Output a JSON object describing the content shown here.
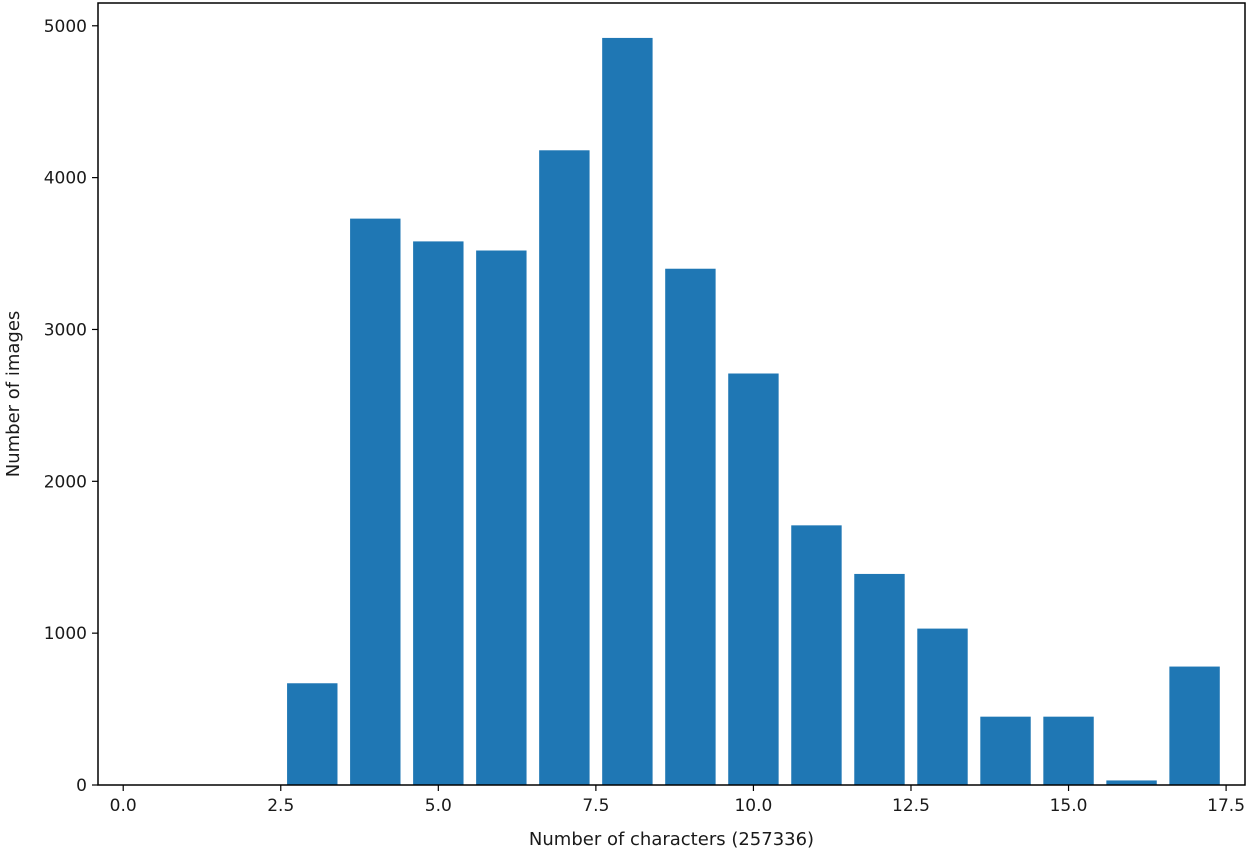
{
  "chart_data": {
    "type": "bar",
    "title": "",
    "xlabel": "Number of characters (257336)",
    "ylabel": "Number of images",
    "x": [
      3,
      4,
      5,
      6,
      7,
      8,
      9,
      10,
      11,
      12,
      13,
      14,
      15,
      16,
      17
    ],
    "values": [
      670,
      3730,
      3580,
      3520,
      4180,
      4920,
      3400,
      2710,
      1710,
      1390,
      1030,
      450,
      450,
      30,
      780
    ],
    "bar_width": 0.8,
    "xlim": [
      -0.4,
      17.8
    ],
    "ylim": [
      0,
      5150
    ],
    "xticks": [
      0.0,
      2.5,
      5.0,
      7.5,
      10.0,
      12.5,
      15.0,
      17.5
    ],
    "xtick_labels": [
      "0.0",
      "2.5",
      "5.0",
      "7.5",
      "10.0",
      "12.5",
      "15.0",
      "17.5"
    ],
    "yticks": [
      0,
      1000,
      2000,
      3000,
      4000,
      5000
    ],
    "ytick_labels": [
      "0",
      "1000",
      "2000",
      "3000",
      "4000",
      "5000"
    ],
    "grid": false,
    "legend": false,
    "bar_color": "#1f77b4"
  }
}
